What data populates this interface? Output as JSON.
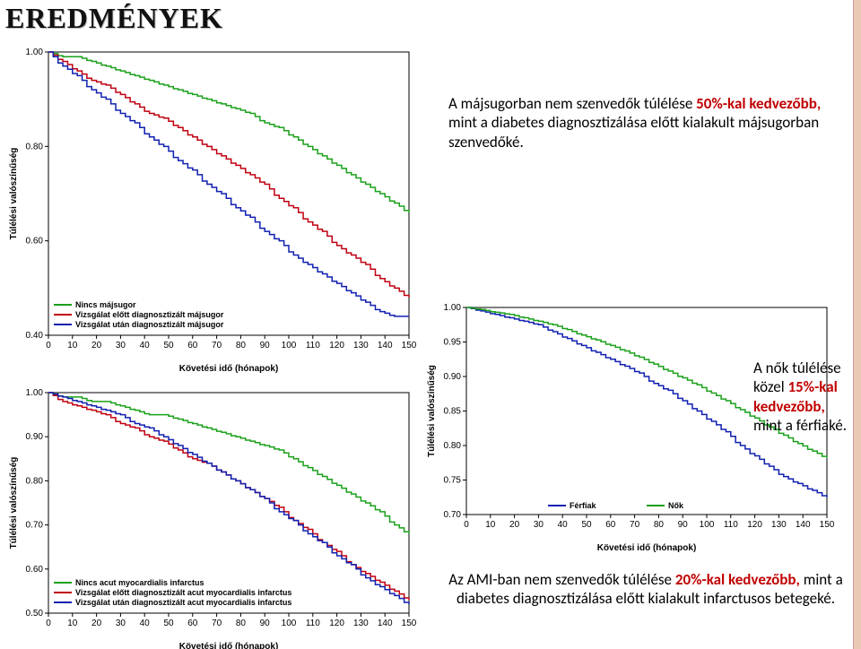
{
  "heading": "EREDMÉNYEK",
  "common": {
    "xlabel": "Követési idő (hónapok)",
    "ylabel": "Túlélési valószínűség",
    "xticks": [
      0,
      10,
      20,
      30,
      40,
      50,
      60,
      70,
      80,
      90,
      100,
      110,
      120,
      130,
      140,
      150
    ],
    "axis_color": "#000000",
    "background_color": "#ffffff",
    "tick_fontsize": 10,
    "label_fontsize": 10,
    "line_width": 1.5
  },
  "chart1": {
    "type": "kaplan-meier",
    "ylim": [
      0.4,
      1.0
    ],
    "ytick_step": 0.2,
    "series": [
      {
        "name": "Nincs májsugor",
        "color": "#1aa01a",
        "x": [
          0,
          6,
          12,
          18,
          24,
          30,
          36,
          42,
          48,
          54,
          60,
          66,
          72,
          78,
          84,
          90,
          96,
          102,
          108,
          114,
          120,
          126,
          132,
          138,
          144,
          150
        ],
        "y": [
          1.0,
          0.99,
          0.99,
          0.98,
          0.97,
          0.96,
          0.95,
          0.94,
          0.93,
          0.92,
          0.91,
          0.9,
          0.89,
          0.88,
          0.87,
          0.85,
          0.84,
          0.82,
          0.8,
          0.78,
          0.76,
          0.74,
          0.72,
          0.7,
          0.68,
          0.66
        ]
      },
      {
        "name": "Vizsgálat előtt diagnosztizált májsugor",
        "color": "#c00010",
        "x": [
          0,
          6,
          12,
          18,
          24,
          30,
          36,
          42,
          48,
          54,
          60,
          66,
          72,
          78,
          84,
          90,
          96,
          102,
          108,
          114,
          120,
          126,
          132,
          138,
          144,
          150
        ],
        "y": [
          1.0,
          0.98,
          0.96,
          0.94,
          0.93,
          0.91,
          0.89,
          0.87,
          0.86,
          0.84,
          0.82,
          0.8,
          0.78,
          0.76,
          0.74,
          0.72,
          0.69,
          0.67,
          0.64,
          0.62,
          0.59,
          0.57,
          0.55,
          0.52,
          0.5,
          0.48
        ]
      },
      {
        "name": "Vizsgálat után diagnosztizált májsugor",
        "color": "#1020b0",
        "x": [
          0,
          6,
          12,
          18,
          24,
          30,
          36,
          42,
          48,
          54,
          60,
          66,
          72,
          78,
          84,
          90,
          96,
          102,
          108,
          114,
          120,
          126,
          132,
          138,
          144,
          150
        ],
        "y": [
          1.0,
          0.97,
          0.95,
          0.92,
          0.9,
          0.87,
          0.85,
          0.82,
          0.8,
          0.77,
          0.75,
          0.72,
          0.7,
          0.67,
          0.65,
          0.62,
          0.6,
          0.57,
          0.55,
          0.53,
          0.51,
          0.49,
          0.47,
          0.45,
          0.44,
          0.44
        ]
      }
    ],
    "legend_pos": "bottom-left-inside",
    "desc": {
      "a": "A májsugorban nem szenvedők túlélése",
      "key": "50%-kal kedvezőbb,",
      "b": "mint a diabetes diagnosztizálása előtt kialakult májsugorban szenvedőké."
    }
  },
  "chart2": {
    "type": "kaplan-meier",
    "ylim": [
      0.5,
      1.0
    ],
    "ytick_step": 0.1,
    "series": [
      {
        "name": "Nincs acut myocardialis infarctus",
        "color": "#1aa01a",
        "x": [
          0,
          6,
          12,
          18,
          24,
          30,
          36,
          42,
          48,
          54,
          60,
          66,
          72,
          78,
          84,
          90,
          96,
          102,
          108,
          114,
          120,
          126,
          132,
          138,
          144,
          150
        ],
        "y": [
          1.0,
          0.99,
          0.99,
          0.98,
          0.98,
          0.97,
          0.96,
          0.95,
          0.95,
          0.94,
          0.93,
          0.92,
          0.91,
          0.9,
          0.89,
          0.88,
          0.87,
          0.85,
          0.83,
          0.81,
          0.79,
          0.77,
          0.75,
          0.73,
          0.7,
          0.68
        ]
      },
      {
        "name": "Vizsgálat előtt diagnosztizált acut myocardialis infarctus",
        "color": "#c00010",
        "x": [
          0,
          6,
          12,
          18,
          24,
          30,
          36,
          42,
          48,
          54,
          60,
          66,
          72,
          78,
          84,
          90,
          96,
          102,
          108,
          114,
          120,
          126,
          132,
          138,
          144,
          150
        ],
        "y": [
          1.0,
          0.98,
          0.97,
          0.96,
          0.95,
          0.93,
          0.92,
          0.9,
          0.89,
          0.87,
          0.85,
          0.84,
          0.82,
          0.8,
          0.78,
          0.76,
          0.74,
          0.71,
          0.69,
          0.66,
          0.64,
          0.61,
          0.59,
          0.57,
          0.55,
          0.53
        ]
      },
      {
        "name": "Vizsgálat után diagnosztizált acut myocardialis infarctus",
        "color": "#1020b0",
        "x": [
          0,
          6,
          12,
          18,
          24,
          30,
          36,
          42,
          48,
          54,
          60,
          66,
          72,
          78,
          84,
          90,
          96,
          102,
          108,
          114,
          120,
          126,
          132,
          138,
          144,
          150
        ],
        "y": [
          1.0,
          0.99,
          0.98,
          0.97,
          0.96,
          0.95,
          0.93,
          0.92,
          0.9,
          0.88,
          0.86,
          0.84,
          0.82,
          0.8,
          0.78,
          0.76,
          0.73,
          0.71,
          0.68,
          0.66,
          0.63,
          0.61,
          0.58,
          0.56,
          0.54,
          0.52
        ]
      }
    ],
    "legend_pos": "bottom-left-inside",
    "desc": {
      "a": "Az AMI-ban nem szenvedők túlélése",
      "key": "20%-kal kedvezőbb,",
      "b": "mint a diabetes diagnosztizálása előtt kialakult infarctusos betegeké."
    }
  },
  "chart3": {
    "type": "kaplan-meier",
    "ylim": [
      0.7,
      1.0
    ],
    "ytick_step": 0.05,
    "series": [
      {
        "name": "Férfiak",
        "color": "#1020b0",
        "x": [
          0,
          6,
          12,
          18,
          24,
          30,
          36,
          42,
          48,
          54,
          60,
          66,
          72,
          78,
          84,
          90,
          96,
          102,
          108,
          114,
          120,
          126,
          132,
          138,
          144,
          150
        ],
        "y": [
          1.0,
          0.995,
          0.99,
          0.985,
          0.98,
          0.975,
          0.965,
          0.955,
          0.945,
          0.935,
          0.925,
          0.915,
          0.905,
          0.89,
          0.88,
          0.865,
          0.85,
          0.835,
          0.82,
          0.8,
          0.785,
          0.77,
          0.755,
          0.745,
          0.735,
          0.725
        ]
      },
      {
        "name": "Nők",
        "color": "#1aa01a",
        "x": [
          0,
          6,
          12,
          18,
          24,
          30,
          36,
          42,
          48,
          54,
          60,
          66,
          72,
          78,
          84,
          90,
          96,
          102,
          108,
          114,
          120,
          126,
          132,
          138,
          144,
          150
        ],
        "y": [
          1.0,
          0.997,
          0.993,
          0.99,
          0.985,
          0.98,
          0.975,
          0.968,
          0.96,
          0.953,
          0.945,
          0.937,
          0.928,
          0.918,
          0.908,
          0.898,
          0.888,
          0.876,
          0.865,
          0.852,
          0.84,
          0.827,
          0.815,
          0.803,
          0.792,
          0.782
        ]
      }
    ],
    "legend_pos": "bottom-center-inside",
    "legend_colors": {
      "Férfiak": "#1020b0"
    },
    "desc": {
      "a": "A nők túlélése közel",
      "key": "15%-kal kedvezőbb,",
      "b": "mint a férfiaké."
    }
  }
}
